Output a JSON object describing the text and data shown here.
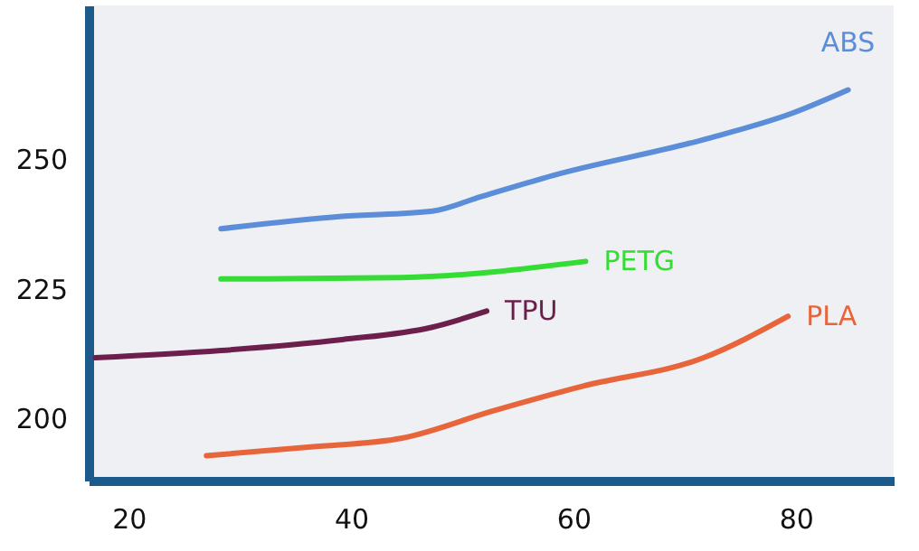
{
  "chart_data": {
    "type": "line",
    "xlim": [
      16.4,
      88.8
    ],
    "ylim": [
      188,
      279.7
    ],
    "xticks": [
      20,
      40,
      60,
      80
    ],
    "yticks": [
      200,
      225,
      250
    ],
    "grid": false,
    "legend": false,
    "series": [
      {
        "name": "ABS",
        "color": "#5b8dd9",
        "x": [
          28.3,
          39.2,
          47.3,
          51.7,
          58.2,
          71.7,
          79.8,
          84.7
        ],
        "values": [
          236.6,
          239,
          240,
          242.8,
          246.9,
          253.8,
          259,
          263.4
        ]
      },
      {
        "name": "PETG",
        "color": "#33dd33",
        "x": [
          28.3,
          44.6,
          61.1
        ],
        "values": [
          226.9,
          227.2,
          230.3
        ]
      },
      {
        "name": "TPU",
        "color": "#6b1f4a",
        "x": [
          17,
          28.3,
          39.2,
          47.3,
          52.2
        ],
        "values": [
          211.7,
          213.1,
          215.2,
          217.6,
          220.7
        ]
      },
      {
        "name": "PLA",
        "color": "#e8643a",
        "x": [
          27,
          36.4,
          44.6,
          52.7,
          60.8,
          71.7,
          79.3
        ],
        "values": [
          192.8,
          194.5,
          196.2,
          201.4,
          206.2,
          211.7,
          219.7
        ]
      }
    ]
  }
}
